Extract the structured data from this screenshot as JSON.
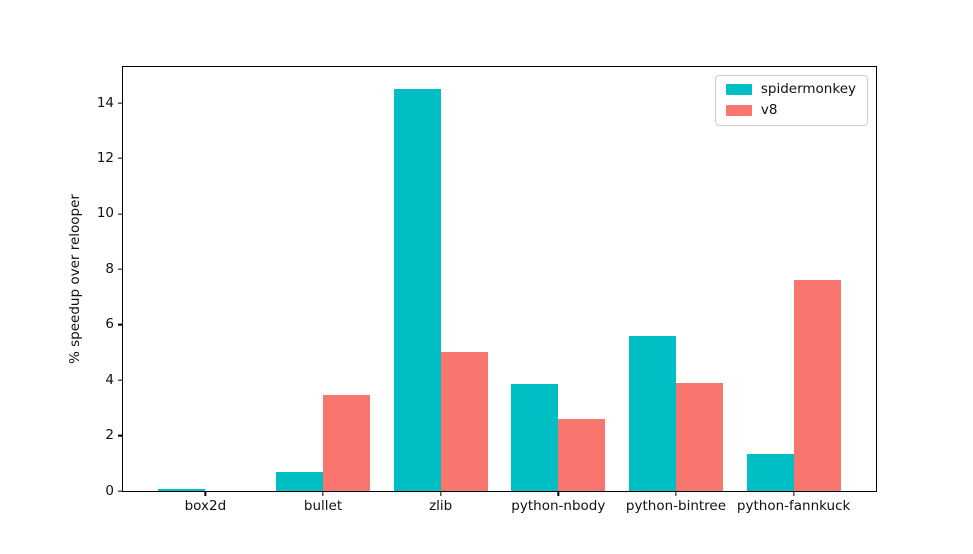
{
  "chart_data": {
    "type": "bar",
    "title": "",
    "xlabel": "",
    "ylabel": "% speedup over relooper",
    "categories": [
      "box2d",
      "bullet",
      "zlib",
      "python-nbody",
      "python-bintree",
      "python-fannkuck"
    ],
    "series": [
      {
        "name": "spidermonkey",
        "color": "#00BFC4",
        "values": [
          0.08,
          0.7,
          14.5,
          3.85,
          5.6,
          1.35
        ]
      },
      {
        "name": "v8",
        "color": "#F8766D",
        "values": [
          0.0,
          3.45,
          5.0,
          2.6,
          3.9,
          7.6
        ]
      }
    ],
    "yticks": [
      0,
      2,
      4,
      6,
      8,
      10,
      12,
      14
    ],
    "ylim": [
      0,
      15.3
    ],
    "x_range": [
      -0.7,
      5.7
    ],
    "bar_width_frac": 0.4,
    "grid": false,
    "legend_position": "upper right",
    "axis_color": "#000000",
    "background_color": "#ffffff"
  }
}
